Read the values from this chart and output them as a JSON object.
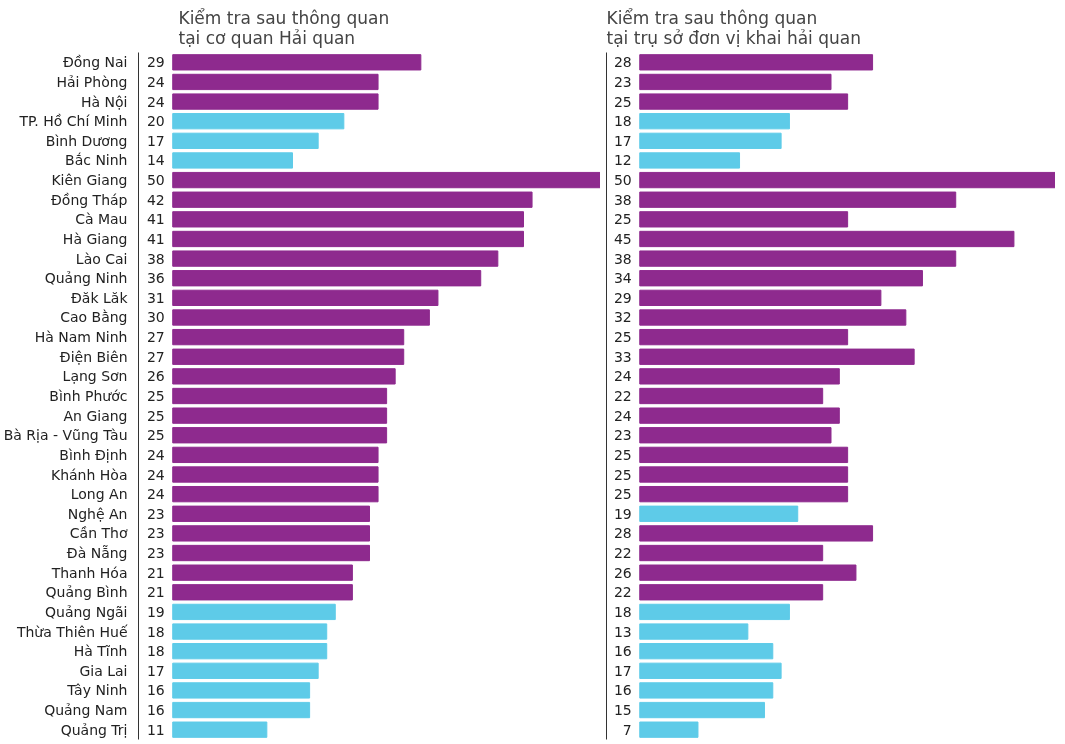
{
  "chart_data": [
    {
      "type": "bar",
      "orientation": "horizontal",
      "title": "Kiểm tra sau thông quan\ntại cơ quan Hải quan",
      "categories": [
        "Đồng Nai",
        "Hải Phòng",
        "Hà Nội",
        "TP. Hồ Chí Minh",
        "Bình Dương",
        "Bắc Ninh",
        "Kiên Giang",
        "Đồng Tháp",
        "Cà Mau",
        "Hà Giang",
        "Lào Cai",
        "Quảng Ninh",
        "Đăk Lăk",
        "Cao Bằng",
        "Hà Nam Ninh",
        "Điện Biên",
        "Lạng Sơn",
        "Bình Phước",
        "An Giang",
        "Bà Rịa - Vũng Tàu",
        "Bình Định",
        "Khánh Hòa",
        "Long An",
        "Nghệ An",
        "Cần Thơ",
        "Đà Nẵng",
        "Thanh Hóa",
        "Quảng Bình",
        "Quảng Ngãi",
        "Thừa Thiên Huế",
        "Hà Tĩnh",
        "Gia Lai",
        "Tây Ninh",
        "Quảng Nam",
        "Quảng Trị"
      ],
      "values": [
        29,
        24,
        24,
        20,
        17,
        14,
        50,
        42,
        41,
        41,
        38,
        36,
        31,
        30,
        27,
        27,
        26,
        25,
        25,
        25,
        24,
        24,
        24,
        23,
        23,
        23,
        21,
        21,
        19,
        18,
        18,
        17,
        16,
        16,
        11
      ],
      "colors": [
        "#8e2a8e",
        "#8e2a8e",
        "#8e2a8e",
        "#5ecbe8",
        "#5ecbe8",
        "#5ecbe8",
        "#8e2a8e",
        "#8e2a8e",
        "#8e2a8e",
        "#8e2a8e",
        "#8e2a8e",
        "#8e2a8e",
        "#8e2a8e",
        "#8e2a8e",
        "#8e2a8e",
        "#8e2a8e",
        "#8e2a8e",
        "#8e2a8e",
        "#8e2a8e",
        "#8e2a8e",
        "#8e2a8e",
        "#8e2a8e",
        "#8e2a8e",
        "#8e2a8e",
        "#8e2a8e",
        "#8e2a8e",
        "#8e2a8e",
        "#8e2a8e",
        "#5ecbe8",
        "#5ecbe8",
        "#5ecbe8",
        "#5ecbe8",
        "#5ecbe8",
        "#5ecbe8",
        "#5ecbe8"
      ],
      "xlim": [
        0,
        50
      ],
      "data_labels": true,
      "tick_labels": "y",
      "grid": false
    },
    {
      "type": "bar",
      "orientation": "horizontal",
      "title": "Kiểm tra sau thông quan\ntại trụ sở đơn vị khai hải quan",
      "categories": [
        null,
        null,
        null,
        null,
        null,
        null,
        null,
        null,
        null,
        null,
        null,
        null,
        null,
        null,
        null,
        null,
        null,
        null,
        null,
        null,
        null,
        null,
        null,
        null,
        null,
        null,
        null,
        null,
        null,
        null,
        null,
        null,
        null,
        null,
        null
      ],
      "values": [
        28,
        23,
        25,
        18,
        17,
        12,
        50,
        38,
        25,
        45,
        38,
        34,
        29,
        32,
        25,
        33,
        24,
        22,
        24,
        23,
        25,
        25,
        25,
        19,
        28,
        22,
        26,
        22,
        18,
        13,
        16,
        17,
        16,
        15,
        7
      ],
      "colors": [
        "#8e2a8e",
        "#8e2a8e",
        "#8e2a8e",
        "#5ecbe8",
        "#5ecbe8",
        "#5ecbe8",
        "#8e2a8e",
        "#8e2a8e",
        "#8e2a8e",
        "#8e2a8e",
        "#8e2a8e",
        "#8e2a8e",
        "#8e2a8e",
        "#8e2a8e",
        "#8e2a8e",
        "#8e2a8e",
        "#8e2a8e",
        "#8e2a8e",
        "#8e2a8e",
        "#8e2a8e",
        "#8e2a8e",
        "#8e2a8e",
        "#8e2a8e",
        "#5ecbe8",
        "#8e2a8e",
        "#8e2a8e",
        "#8e2a8e",
        "#8e2a8e",
        "#5ecbe8",
        "#5ecbe8",
        "#5ecbe8",
        "#5ecbe8",
        "#5ecbe8",
        "#5ecbe8",
        "#5ecbe8"
      ],
      "xlim": [
        0,
        50
      ],
      "data_labels": true,
      "tick_labels": false,
      "grid": false
    }
  ]
}
